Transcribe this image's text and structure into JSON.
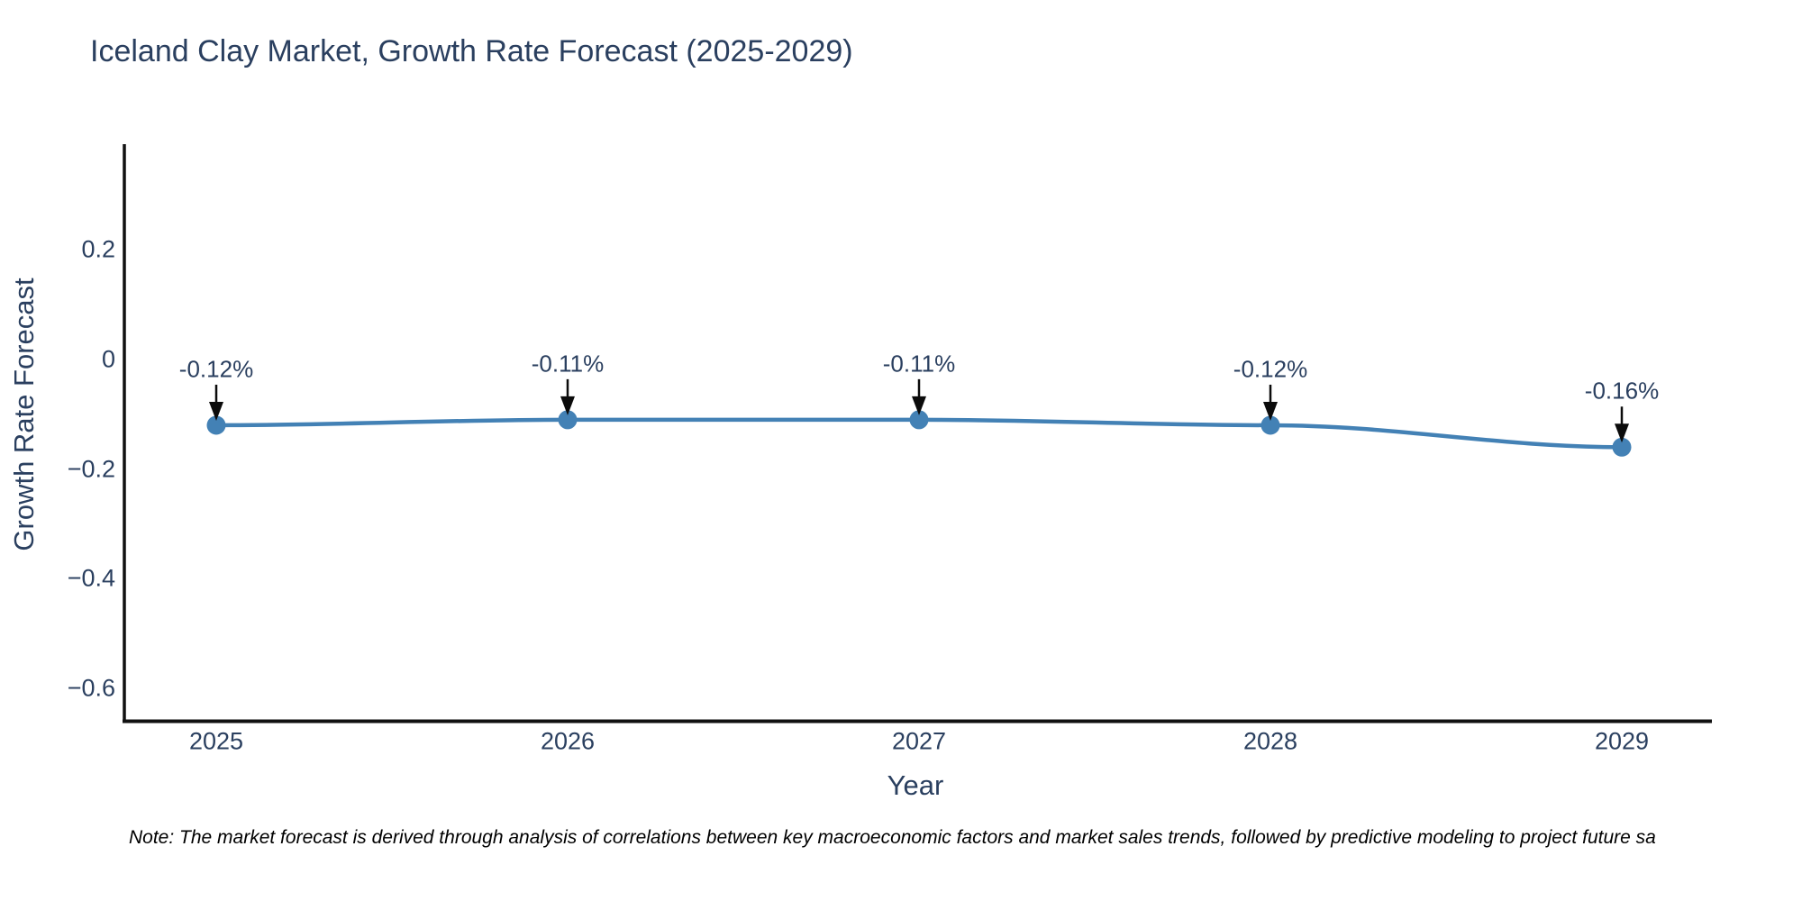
{
  "title": "Iceland Clay Market, Growth Rate Forecast (2025-2029)",
  "note": "Note: The market forecast is derived through analysis of correlations between key macroeconomic factors and market sales trends, followed by predictive modeling to project future sa",
  "colors": {
    "background": "#ffffff",
    "text": "#2a3f5f",
    "series": "#4381b5",
    "axis": "#111111",
    "arrow": "#0b0b0b",
    "note_text": "#000000"
  },
  "chart_data": {
    "type": "line",
    "title": "Iceland Clay Market, Growth Rate Forecast (2025-2029)",
    "xlabel": "Year",
    "ylabel": "Growth Rate Forecast",
    "x": [
      2025,
      2026,
      2027,
      2028,
      2029
    ],
    "y": [
      -0.12,
      -0.11,
      -0.11,
      -0.12,
      -0.16
    ],
    "point_labels": [
      "-0.12%",
      "-0.11%",
      "-0.11%",
      "-0.12%",
      "-0.16%"
    ],
    "xtick_labels": [
      "2025",
      "2026",
      "2027",
      "2028",
      "2029"
    ],
    "ytick_values": [
      0.2,
      0,
      -0.2,
      -0.4,
      -0.6
    ],
    "ytick_labels": [
      "0.2",
      "0",
      "−0.2",
      "−0.4",
      "−0.6"
    ],
    "ylim": [
      -0.66,
      0.39
    ],
    "grid": false,
    "legend": false,
    "line_shape": "spline",
    "marker": "circle",
    "annotation_style": "value label with downward arrow above each point"
  }
}
